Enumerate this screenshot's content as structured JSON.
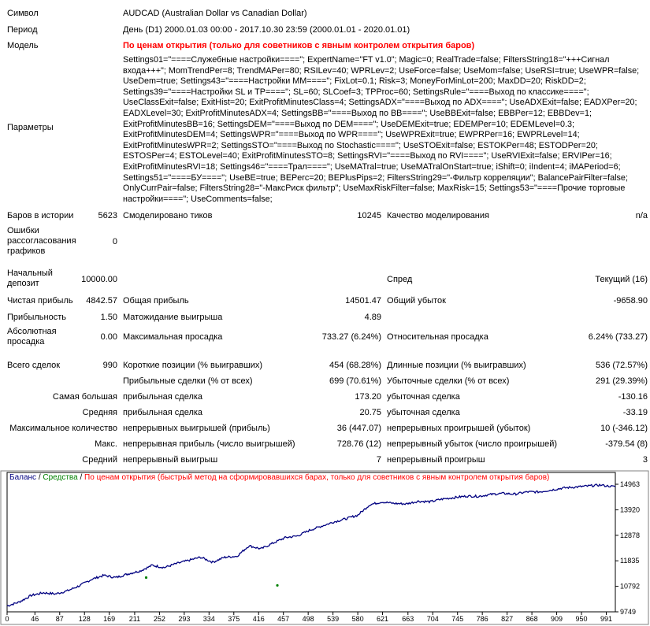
{
  "header": {
    "symbol_label": "Символ",
    "symbol_value": "AUDCAD (Australian Dollar vs Canadian Dollar)",
    "period_label": "Период",
    "period_value": "День (D1) 2000.01.03 00:00 - 2017.10.30 23:59 (2000.01.01 - 2020.01.01)",
    "model_label": "Модель",
    "model_value": "По ценам открытия (только для советников с явным контролем открытия баров)",
    "params_label": "Параметры",
    "params_value": "Settings01=\"====Служебные настройки====\"; ExpertName=\"FT v1.0\"; Magic=0; RealTrade=false; FiltersString18=\"+++Сигнал входа+++\"; MomTrendPer=8; TrendMAPer=80; RSILev=40; WPRLev=2; UseForce=false; UseMom=false; UseRSI=true; UseWPR=false; UseDem=true; Settings43=\"====Настройки MM====\"; FixLot=0.1; Risk=3; MoneyForMinLot=200; MaxDD=20; RiskDD=2; Settings39=\"====Настройки SL и TP====\"; SL=60; SLCoef=3; TPProc=60; SettingsRule=\"====Выход по классике====\"; UseClassExit=false; ExitHist=20; ExitProfitMinutesClass=4; SettingsADX=\"====Выход по ADX====\"; UseADXExit=false; EADXPer=20; EADXLevel=30; ExitProfitMinutesADX=4; SettingsBB=\"====Выход по BB====\"; UseBBExit=false; EBBPer=12; EBBDev=1; ExitProfitMinutesBB=16; SettingsDEM=\"====Выход по DEM====\"; UseDEMExit=true; EDEMPer=10; EDEMLevel=0.3; ExitProfitMinutesDEM=4; SettingsWPR=\"====Выход по WPR====\"; UseWPRExit=true; EWPRPer=16; EWPRLevel=14; ExitProfitMinutesWPR=2; SettingsSTO=\"====Выход по Stochastic====\"; UseSTOExit=false; ESTOKPer=48; ESTODPer=20; ESTOSPer=4; ESTOLevel=40; ExitProfitMinutesSTO=8; SettingsRVI=\"====Выход по RVI====\"; UseRVIExit=false; ERVIPer=16; ExitProfitMinutesRVI=18; Settings46=\"====Трал====\"; UseMATral=true; UseMATralOnStart=true; iShift=0; iIndent=4; iMAPeriod=6; Settings51=\"====БУ====\"; UseBE=true; BEPerc=20; BEPlusPips=2; FiltersString29=\"-Фильтр корреляции\"; BalancePairFilter=false; OnlyCurrPair=false; FiltersString28=\"-МаксРиск фильтр\"; UseMaxRiskFilter=false; MaxRisk=15; Settings53=\"====Прочие торговые настройки====\"; UseComments=false;"
  },
  "stats": {
    "bars_label": "Баров в истории",
    "bars_value": "5623",
    "ticks_label": "Смоделировано тиков",
    "ticks_value": "10245",
    "quality_label": "Качество моделирования",
    "quality_value": "n/a",
    "errors_label": "Ошибки рассогласования графиков",
    "errors_value": "0",
    "deposit_label": "Начальный депозит",
    "deposit_value": "10000.00",
    "spread_label": "Спред",
    "spread_value": "Текущий (16)",
    "net_label": "Чистая прибыль",
    "net_value": "4842.57",
    "gross_profit_label": "Общая прибыль",
    "gross_profit_value": "14501.47",
    "gross_loss_label": "Общий убыток",
    "gross_loss_value": "-9658.90",
    "pf_label": "Прибыльность",
    "pf_value": "1.50",
    "expect_label": "Матожидание выигрыша",
    "expect_value": "4.89",
    "abs_dd_label": "Абсолютная просадка",
    "abs_dd_value": "0.00",
    "max_dd_label": "Максимальная просадка",
    "max_dd_value": "733.27 (6.24%)",
    "rel_dd_label": "Относительная просадка",
    "rel_dd_value": "6.24% (733.27)",
    "total_label": "Всего сделок",
    "total_value": "990",
    "short_label": "Короткие позиции (% выигравших)",
    "short_value": "454 (68.28%)",
    "long_label": "Длинные позиции (% выигравших)",
    "long_value": "536 (72.57%)",
    "profit_trades_label": "Прибыльные сделки (% от всех)",
    "profit_trades_value": "699 (70.61%)",
    "loss_trades_label": "Убыточные сделки (% от всех)",
    "loss_trades_value": "291 (29.39%)",
    "largest_label": "Самая большая",
    "largest_profit_label": "прибыльная сделка",
    "largest_profit_value": "173.20",
    "largest_loss_label": "убыточная сделка",
    "largest_loss_value": "-130.16",
    "avg_label": "Средняя",
    "avg_profit_label": "прибыльная сделка",
    "avg_profit_value": "20.75",
    "avg_loss_label": "убыточная сделка",
    "avg_loss_value": "-33.19",
    "maxcount_label": "Максимальное количество",
    "maxcons_win_label": "непрерывных выигрышей (прибыль)",
    "maxcons_win_value": "36 (447.07)",
    "maxcons_loss_label": "непрерывных проигрышей (убыток)",
    "maxcons_loss_value": "10 (-346.12)",
    "max_label": "Макс.",
    "maxprofit_label": "непрерывная прибыль (число выигрышей)",
    "maxprofit_value": "728.76 (12)",
    "maxloss_label": "непрерывный убыток (число проигрышей)",
    "maxloss_value": "-379.54 (8)",
    "avgcons_label": "Средний",
    "avgcons_win_label": "непрерывный выигрыш",
    "avgcons_win_value": "7",
    "avgcons_loss_label": "непрерывный проигрыш",
    "avgcons_loss_value": "3"
  },
  "chart_legend": {
    "balance": "Баланс",
    "sep1": " / ",
    "equity": "Средства",
    "sep2": " / ",
    "model": "По ценам открытия (быстрый метод на сформировавшихся барах, только для советников с явным контролем открытия баров)"
  },
  "chart_data": {
    "type": "line",
    "series": [
      {
        "name": "Баланс",
        "color": "#000080"
      },
      {
        "name": "Средства",
        "color": "#008000"
      }
    ],
    "x_ticks": [
      "0",
      "46",
      "87",
      "128",
      "169",
      "211",
      "252",
      "293",
      "334",
      "375",
      "416",
      "457",
      "498",
      "539",
      "580",
      "621",
      "663",
      "704",
      "745",
      "786",
      "827",
      "868",
      "909",
      "950",
      "991"
    ],
    "y_ticks": [
      "14963",
      "13920",
      "12878",
      "11835",
      "10792",
      "9749"
    ],
    "xlim": [
      0,
      1006
    ],
    "ylim": [
      9749,
      14963
    ],
    "x": [
      0,
      20,
      40,
      60,
      80,
      100,
      120,
      140,
      160,
      180,
      200,
      220,
      240,
      260,
      280,
      300,
      320,
      340,
      360,
      380,
      400,
      420,
      440,
      460,
      480,
      500,
      520,
      540,
      560,
      580,
      600,
      620,
      640,
      660,
      680,
      700,
      720,
      740,
      760,
      780,
      800,
      820,
      840,
      860,
      880,
      900,
      920,
      940,
      960,
      980,
      1006
    ],
    "values": [
      9990,
      10150,
      10420,
      10530,
      10480,
      10610,
      10820,
      11080,
      11240,
      11150,
      11300,
      11420,
      11650,
      11560,
      11720,
      11850,
      11980,
      11780,
      11980,
      12020,
      12450,
      12320,
      12560,
      12780,
      12850,
      13080,
      13250,
      13420,
      13550,
      13700,
      14130,
      14240,
      14180,
      14160,
      14270,
      14250,
      14360,
      14420,
      14480,
      14470,
      14550,
      14590,
      14560,
      14650,
      14650,
      14730,
      14810,
      14850,
      14890,
      14930,
      14860
    ]
  }
}
